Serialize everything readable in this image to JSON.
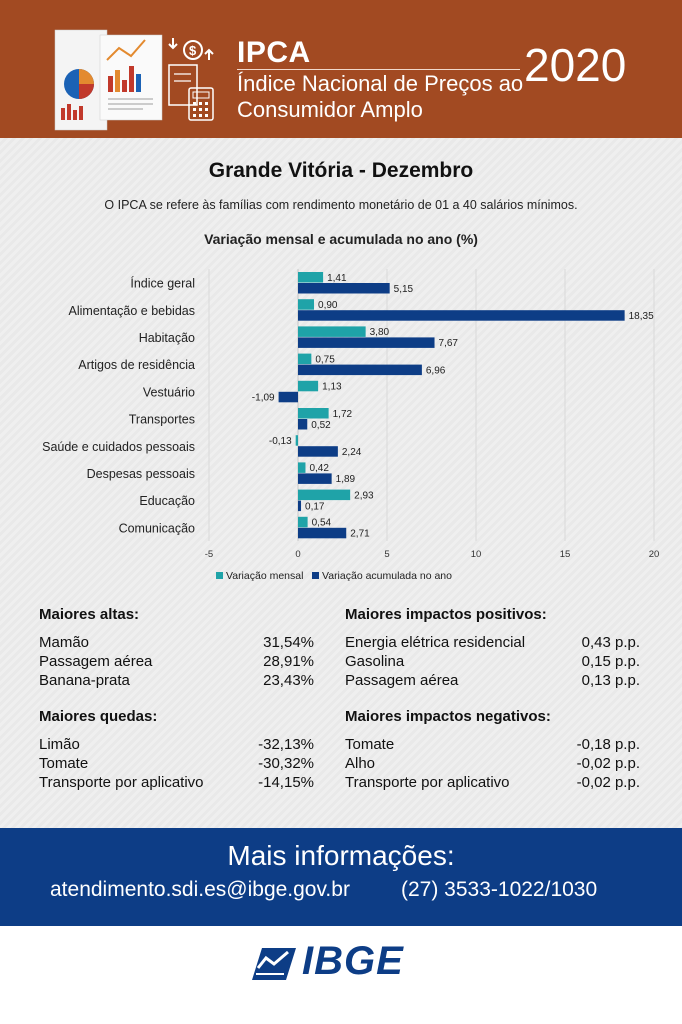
{
  "header": {
    "title": "IPCA",
    "subtitle_line1": "Índice Nacional de Preços ao",
    "subtitle_line2": "Consumidor Amplo",
    "year": "2020",
    "background": "#a24a22"
  },
  "main": {
    "title": "Grande Vitória - Dezembro",
    "note": "O IPCA se refere às famílias com rendimento monetário de 01 a 40 salários mínimos."
  },
  "chart_data": {
    "type": "bar",
    "orientation": "horizontal",
    "title": "Variação mensal e acumulada no ano (%)",
    "categories": [
      "Índice geral",
      "Alimentação e bebidas",
      "Habitação",
      "Artigos de residência",
      "Vestuário",
      "Transportes",
      "Saúde e cuidados pessoais",
      "Despesas pessoais",
      "Educação",
      "Comunicação"
    ],
    "series": [
      {
        "name": "Variação mensal",
        "color": "#1fa3a8",
        "values": [
          1.41,
          0.9,
          3.8,
          0.75,
          1.13,
          1.72,
          -0.13,
          0.42,
          2.93,
          0.54
        ],
        "labels": [
          "1,41",
          "0,90",
          "3,80",
          "0,75",
          "1,13",
          "1,72",
          "-0,13",
          "0,42",
          "2,93",
          "0,54"
        ]
      },
      {
        "name": "Variação acumulada no ano",
        "color": "#0d3d86",
        "values": [
          5.15,
          18.35,
          7.67,
          6.96,
          -1.09,
          0.52,
          2.24,
          1.89,
          0.17,
          2.71
        ],
        "labels": [
          "5,15",
          "18,35",
          "7,67",
          "6,96",
          "-1,09",
          "0,52",
          "2,24",
          "1,89",
          "0,17",
          "2,71"
        ]
      }
    ],
    "xlim": [
      -5,
      20
    ],
    "xticks": [
      -5,
      0,
      5,
      10,
      15,
      20
    ],
    "grid": true,
    "legend": "bottom"
  },
  "lists": {
    "altas": {
      "title": "Maiores altas:",
      "items": [
        {
          "name": "Mamão",
          "value": "31,54%"
        },
        {
          "name": "Passagem aérea",
          "value": "28,91%"
        },
        {
          "name": "Banana-prata",
          "value": "23,43%"
        }
      ]
    },
    "quedas": {
      "title": "Maiores quedas:",
      "items": [
        {
          "name": "Limão",
          "value": "-32,13%"
        },
        {
          "name": "Tomate",
          "value": "-30,32%"
        },
        {
          "name": "Transporte por aplicativo",
          "value": "-14,15%"
        }
      ]
    },
    "impactos_positivos": {
      "title": "Maiores impactos positivos:",
      "items": [
        {
          "name": "Energia elétrica residencial",
          "value": "0,43 p.p."
        },
        {
          "name": "Gasolina",
          "value": "0,15 p.p."
        },
        {
          "name": "Passagem aérea",
          "value": "0,13 p.p."
        }
      ]
    },
    "impactos_negativos": {
      "title": "Maiores impactos negativos:",
      "items": [
        {
          "name": "Tomate",
          "value": "-0,18 p.p."
        },
        {
          "name": "Alho",
          "value": "-0,02 p.p."
        },
        {
          "name": "Transporte por aplicativo",
          "value": "-0,02 p.p."
        }
      ]
    }
  },
  "footer": {
    "title": "Mais informações:",
    "email": "atendimento.sdi.es@ibge.gov.br",
    "phone": "(27) 3533-1022/1030",
    "background": "#0d3d86"
  },
  "logo": {
    "text": "IBGE",
    "icon": "ibge-logo-icon",
    "color": "#0d3d86"
  }
}
